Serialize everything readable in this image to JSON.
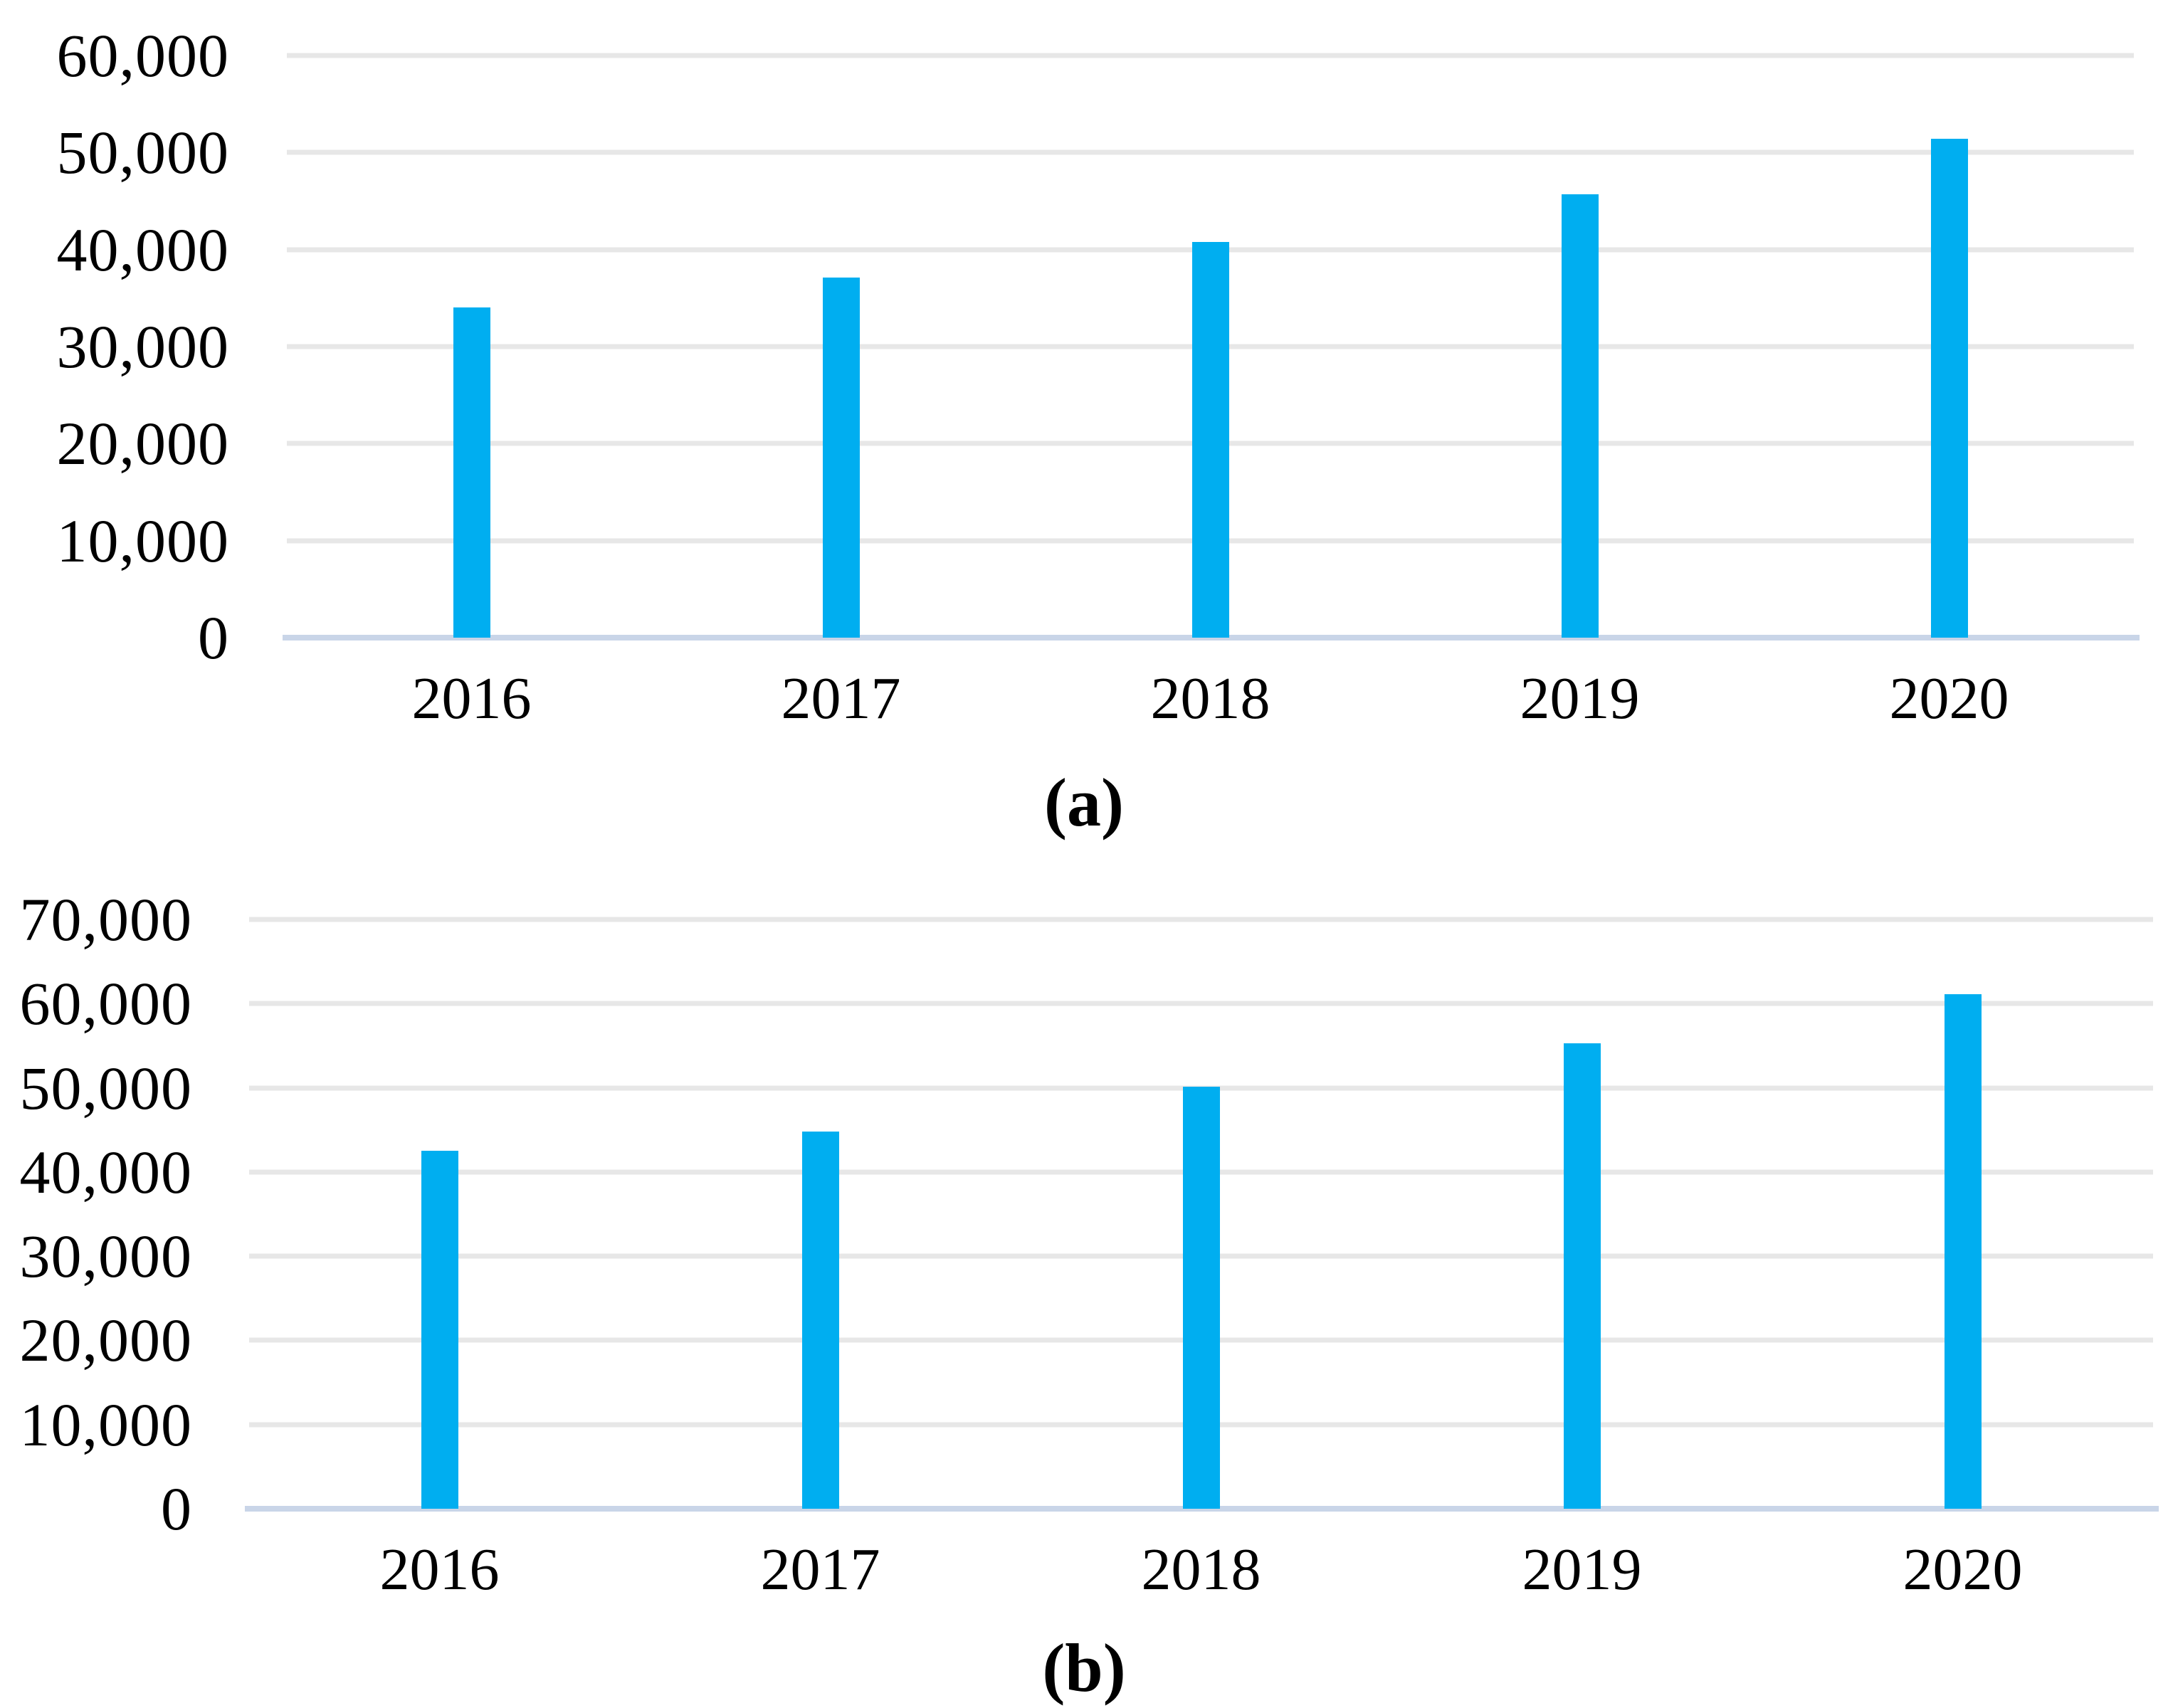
{
  "chart_data": [
    {
      "type": "bar",
      "caption": "(a)",
      "categories": [
        "2016",
        "2017",
        "2018",
        "2019",
        "2020"
      ],
      "values": [
        34000,
        37100,
        40800,
        45700,
        51400
      ],
      "ylim": [
        0,
        60000
      ],
      "y_step": 10000,
      "y_tick_labels": [
        "60,000",
        "50,000",
        "40,000",
        "30,000",
        "20,000",
        "10,000",
        "0"
      ],
      "xlabel": "",
      "ylabel": "",
      "grid": "horizontal",
      "legend": "none",
      "colors": {
        "bar": "#00AEF0",
        "gridline": "#E7E7E7",
        "baseline": "#C9D5E8"
      }
    },
    {
      "type": "bar",
      "caption": "(b)",
      "categories": [
        "2016",
        "2017",
        "2018",
        "2019",
        "2020"
      ],
      "values": [
        42500,
        44800,
        50100,
        55300,
        61100
      ],
      "ylim": [
        0,
        70000
      ],
      "y_step": 10000,
      "y_tick_labels": [
        "70,000",
        "60,000",
        "50,000",
        "40,000",
        "30,000",
        "20,000",
        "10,000",
        "0"
      ],
      "xlabel": "",
      "ylabel": "",
      "grid": "horizontal",
      "legend": "none",
      "colors": {
        "bar": "#00AEF0",
        "gridline": "#E7E7E7",
        "baseline": "#C9D5E8"
      }
    }
  ]
}
